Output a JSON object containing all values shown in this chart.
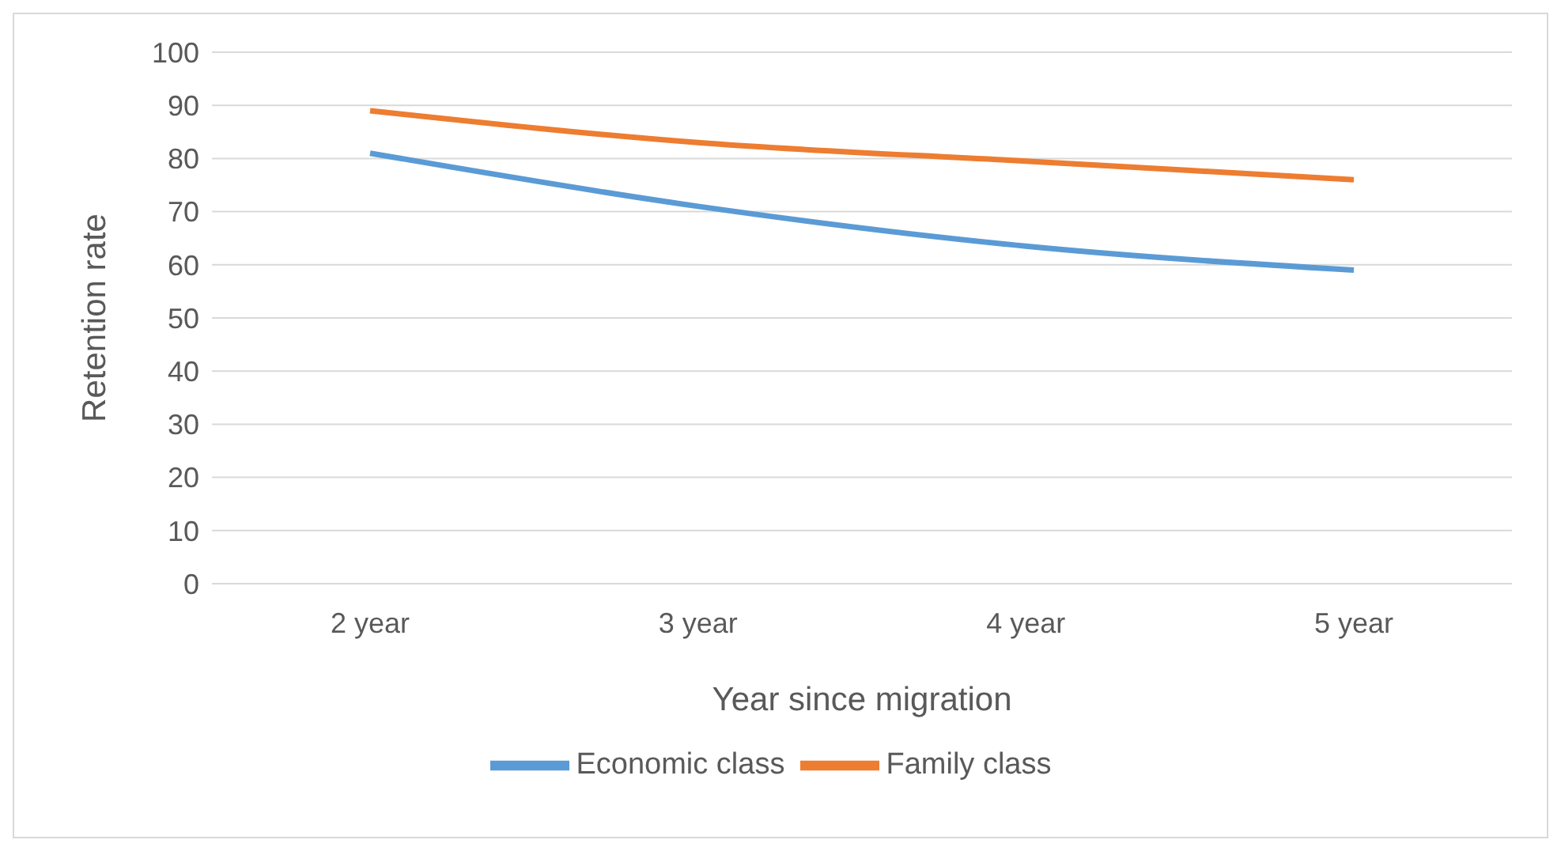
{
  "chart_data": {
    "type": "line",
    "xlabel": "Year since migration",
    "ylabel": "Retention rate",
    "categories": [
      "2 year",
      "3 year",
      "4 year",
      "5 year"
    ],
    "series": [
      {
        "name": "Economic class",
        "color": "#5b9bd5",
        "values": [
          81,
          71,
          63.5,
          59
        ]
      },
      {
        "name": "Family class",
        "color": "#ed7d31",
        "values": [
          89,
          83,
          79.5,
          76
        ]
      }
    ],
    "ylim": [
      0,
      100
    ],
    "yticks": [
      0,
      10,
      20,
      30,
      40,
      50,
      60,
      70,
      80,
      90,
      100
    ],
    "grid": "y",
    "legend": "bottom",
    "marker": "none"
  }
}
